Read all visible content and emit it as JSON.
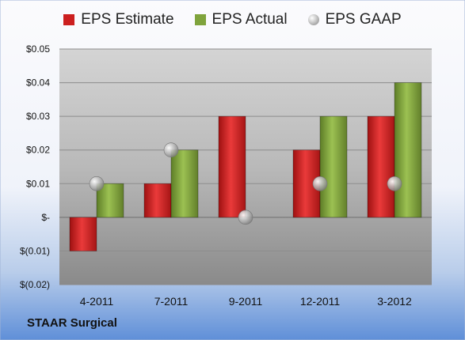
{
  "company": "STAAR Surgical",
  "chart_data": {
    "type": "bar",
    "categories": [
      "4-2011",
      "7-2011",
      "9-2011",
      "12-2011",
      "3-2012"
    ],
    "series": [
      {
        "name": "EPS Estimate",
        "values": [
          -0.01,
          0.01,
          0.03,
          0.02,
          0.03
        ],
        "color": "#cc1f1f",
        "kind": "bar"
      },
      {
        "name": "EPS Actual",
        "values": [
          0.01,
          0.02,
          null,
          0.03,
          0.04
        ],
        "color": "#7fa33c",
        "kind": "bar"
      },
      {
        "name": "EPS GAAP",
        "values": [
          0.01,
          0.02,
          0.0,
          0.01,
          0.01
        ],
        "color": "#a8a8a8",
        "kind": "marker"
      }
    ],
    "ylim": [
      -0.02,
      0.05
    ],
    "yticks": [
      {
        "value": 0.05,
        "label": "$0.05"
      },
      {
        "value": 0.04,
        "label": "$0.04"
      },
      {
        "value": 0.03,
        "label": "$0.03"
      },
      {
        "value": 0.02,
        "label": "$0.02"
      },
      {
        "value": 0.01,
        "label": "$0.01"
      },
      {
        "value": 0.0,
        "label": "$-"
      },
      {
        "value": -0.01,
        "label": "$(0.01)"
      },
      {
        "value": -0.02,
        "label": "$(0.02)"
      }
    ],
    "grid": true,
    "legend_position": "top"
  }
}
